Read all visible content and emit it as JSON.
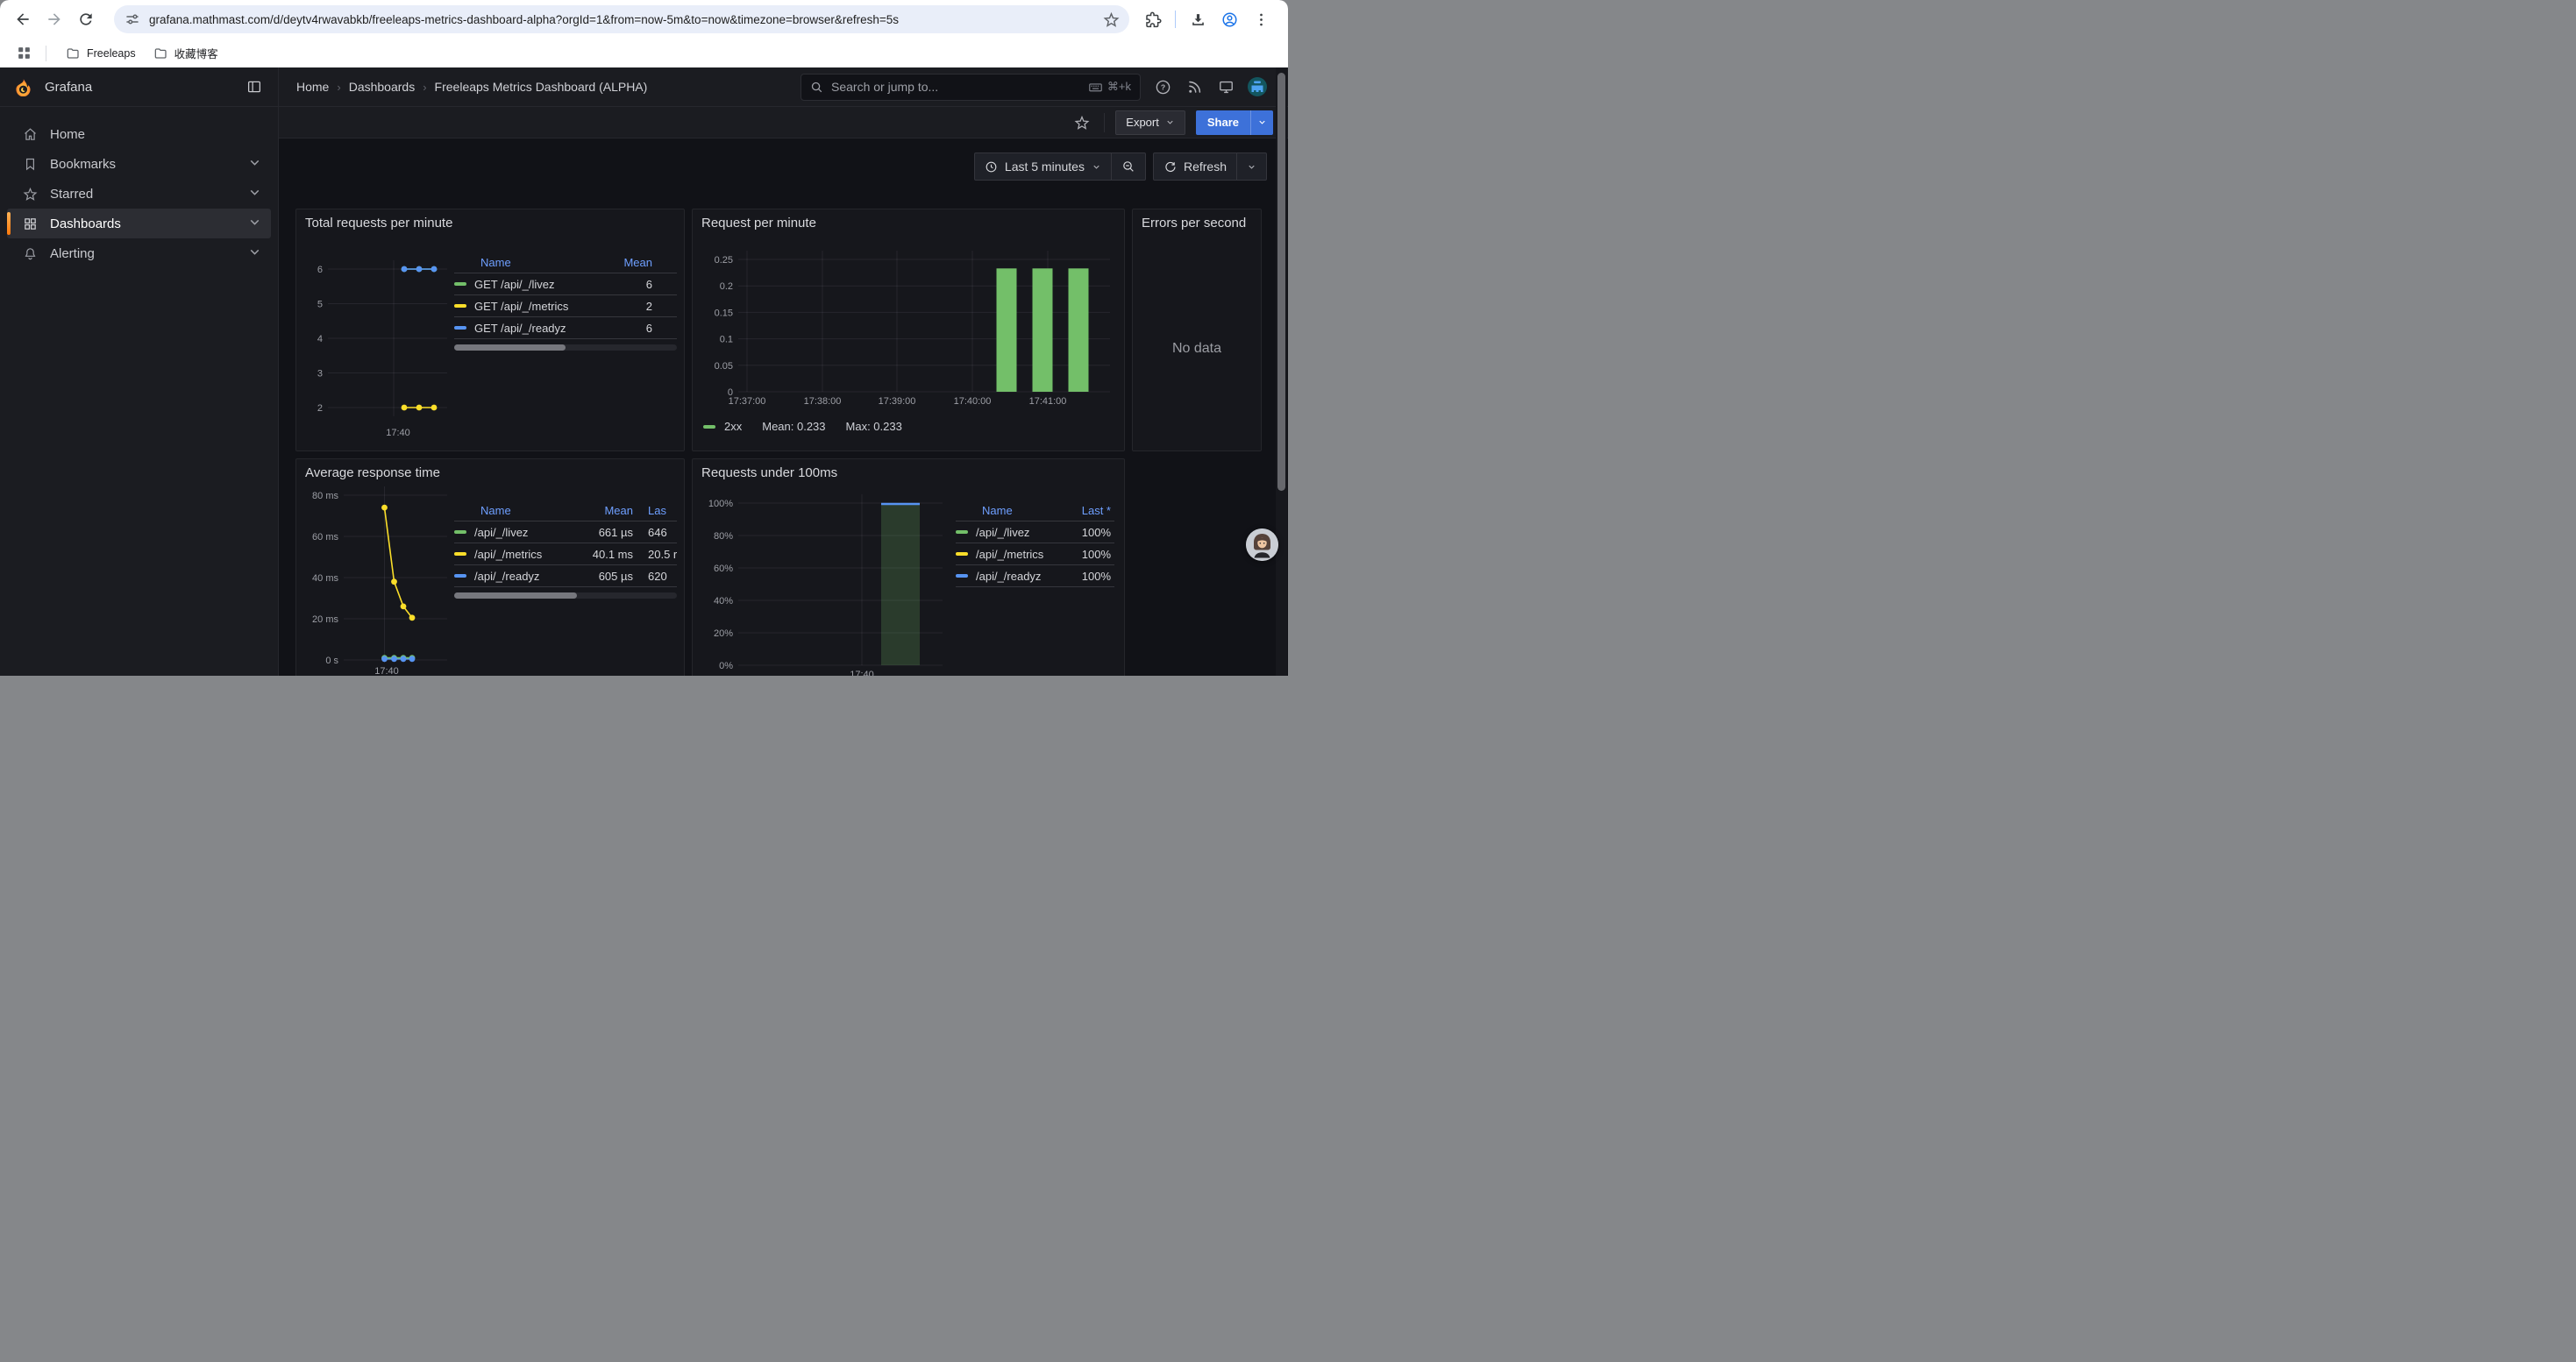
{
  "browser": {
    "url": "grafana.mathmast.com/d/deytv4rwavabkb/freeleaps-metrics-dashboard-alpha?orgId=1&from=now-5m&to=now&timezone=browser&refresh=5s",
    "bookmarks": [
      {
        "label": "Freeleaps"
      },
      {
        "label": "收藏博客"
      }
    ]
  },
  "grafana": {
    "brand": "Grafana",
    "breadcrumb": [
      "Home",
      "Dashboards",
      "Freeleaps Metrics Dashboard (ALPHA)"
    ],
    "search": {
      "placeholder": "Search or jump to...",
      "shortcut": "⌘+k"
    },
    "sidebar": [
      {
        "label": "Home",
        "icon": "home-icon",
        "chevron": false,
        "active": false
      },
      {
        "label": "Bookmarks",
        "icon": "bookmark-icon",
        "chevron": true,
        "active": false
      },
      {
        "label": "Starred",
        "icon": "star-icon",
        "chevron": true,
        "active": false
      },
      {
        "label": "Dashboards",
        "icon": "dashboards-grid-icon",
        "chevron": true,
        "active": true
      },
      {
        "label": "Alerting",
        "icon": "bell-icon",
        "chevron": true,
        "active": false
      }
    ],
    "toolbar": {
      "export_label": "Export",
      "share_label": "Share"
    },
    "timebar": {
      "range_label": "Last 5 minutes",
      "refresh_label": "Refresh"
    }
  },
  "chart_data": [
    {
      "id": "total-requests-per-minute",
      "type": "line",
      "title": "Total requests per minute",
      "y_ticks": [
        "6",
        "5",
        "4",
        "3",
        "2"
      ],
      "ylim": [
        2,
        6
      ],
      "x_ticks": [
        "17:40"
      ],
      "series": [
        {
          "name": "GET /api/_/livez",
          "color": "#73bf69",
          "values": [
            6,
            6,
            6
          ],
          "mean": "6"
        },
        {
          "name": "GET /api/_/metrics",
          "color": "#fade2a",
          "values": [
            2,
            2,
            2
          ],
          "mean": "2"
        },
        {
          "name": "GET /api/_/readyz",
          "color": "#5794f2",
          "values": [
            6,
            6,
            6
          ],
          "mean": "6"
        }
      ],
      "legend_columns": [
        "Name",
        "Mean"
      ]
    },
    {
      "id": "request-per-minute",
      "type": "bar",
      "title": "Request per minute",
      "y_ticks": [
        "0.25",
        "0.2",
        "0.15",
        "0.1",
        "0.05",
        "0"
      ],
      "ylim": [
        0,
        0.25
      ],
      "x_ticks": [
        "17:37:00",
        "17:38:00",
        "17:39:00",
        "17:40:00",
        "17:41:00"
      ],
      "bars": {
        "name": "2xx",
        "color": "#73bf69",
        "values": [
          0.233,
          0.233,
          0.233
        ]
      },
      "legend_stats": {
        "name": "2xx",
        "mean": "Mean: 0.233",
        "max": "Max: 0.233"
      }
    },
    {
      "id": "errors-per-second",
      "type": "empty",
      "title": "Errors per second",
      "message": "No data"
    },
    {
      "id": "average-response-time",
      "type": "line",
      "title": "Average response time",
      "y_ticks": [
        "80 ms",
        "60 ms",
        "40 ms",
        "20 ms",
        "0 s"
      ],
      "ylim_ms": [
        0,
        80
      ],
      "x_ticks": [
        "17:40"
      ],
      "series": [
        {
          "name": "/api/_/livez",
          "color": "#73bf69",
          "values_ms": [
            0.66,
            0.66,
            0.66,
            0.66
          ],
          "mean": "661 µs",
          "last": "646"
        },
        {
          "name": "/api/_/metrics",
          "color": "#fade2a",
          "values_ms": [
            74,
            38,
            26,
            20.5
          ],
          "mean": "40.1 ms",
          "last": "20.5 r"
        },
        {
          "name": "/api/_/readyz",
          "color": "#5794f2",
          "values_ms": [
            0.6,
            0.6,
            0.6,
            0.6
          ],
          "mean": "605 µs",
          "last": "620"
        }
      ],
      "legend_columns": [
        "Name",
        "Mean",
        "Las"
      ]
    },
    {
      "id": "requests-under-100ms",
      "type": "bar",
      "title": "Requests under 100ms",
      "y_ticks": [
        "100%",
        "80%",
        "60%",
        "40%",
        "20%",
        "0%"
      ],
      "ylim": [
        0,
        100
      ],
      "x_ticks": [
        "17:40"
      ],
      "bars": {
        "fill": "rgba(115,191,105,0.22)",
        "top_color": "#5794f2",
        "values": [
          100
        ]
      },
      "series": [
        {
          "name": "/api/_/livez",
          "color": "#73bf69",
          "last": "100%"
        },
        {
          "name": "/api/_/metrics",
          "color": "#fade2a",
          "last": "100%"
        },
        {
          "name": "/api/_/readyz",
          "color": "#5794f2",
          "last": "100%"
        }
      ],
      "legend_columns": [
        "Name",
        "Last *"
      ]
    }
  ]
}
